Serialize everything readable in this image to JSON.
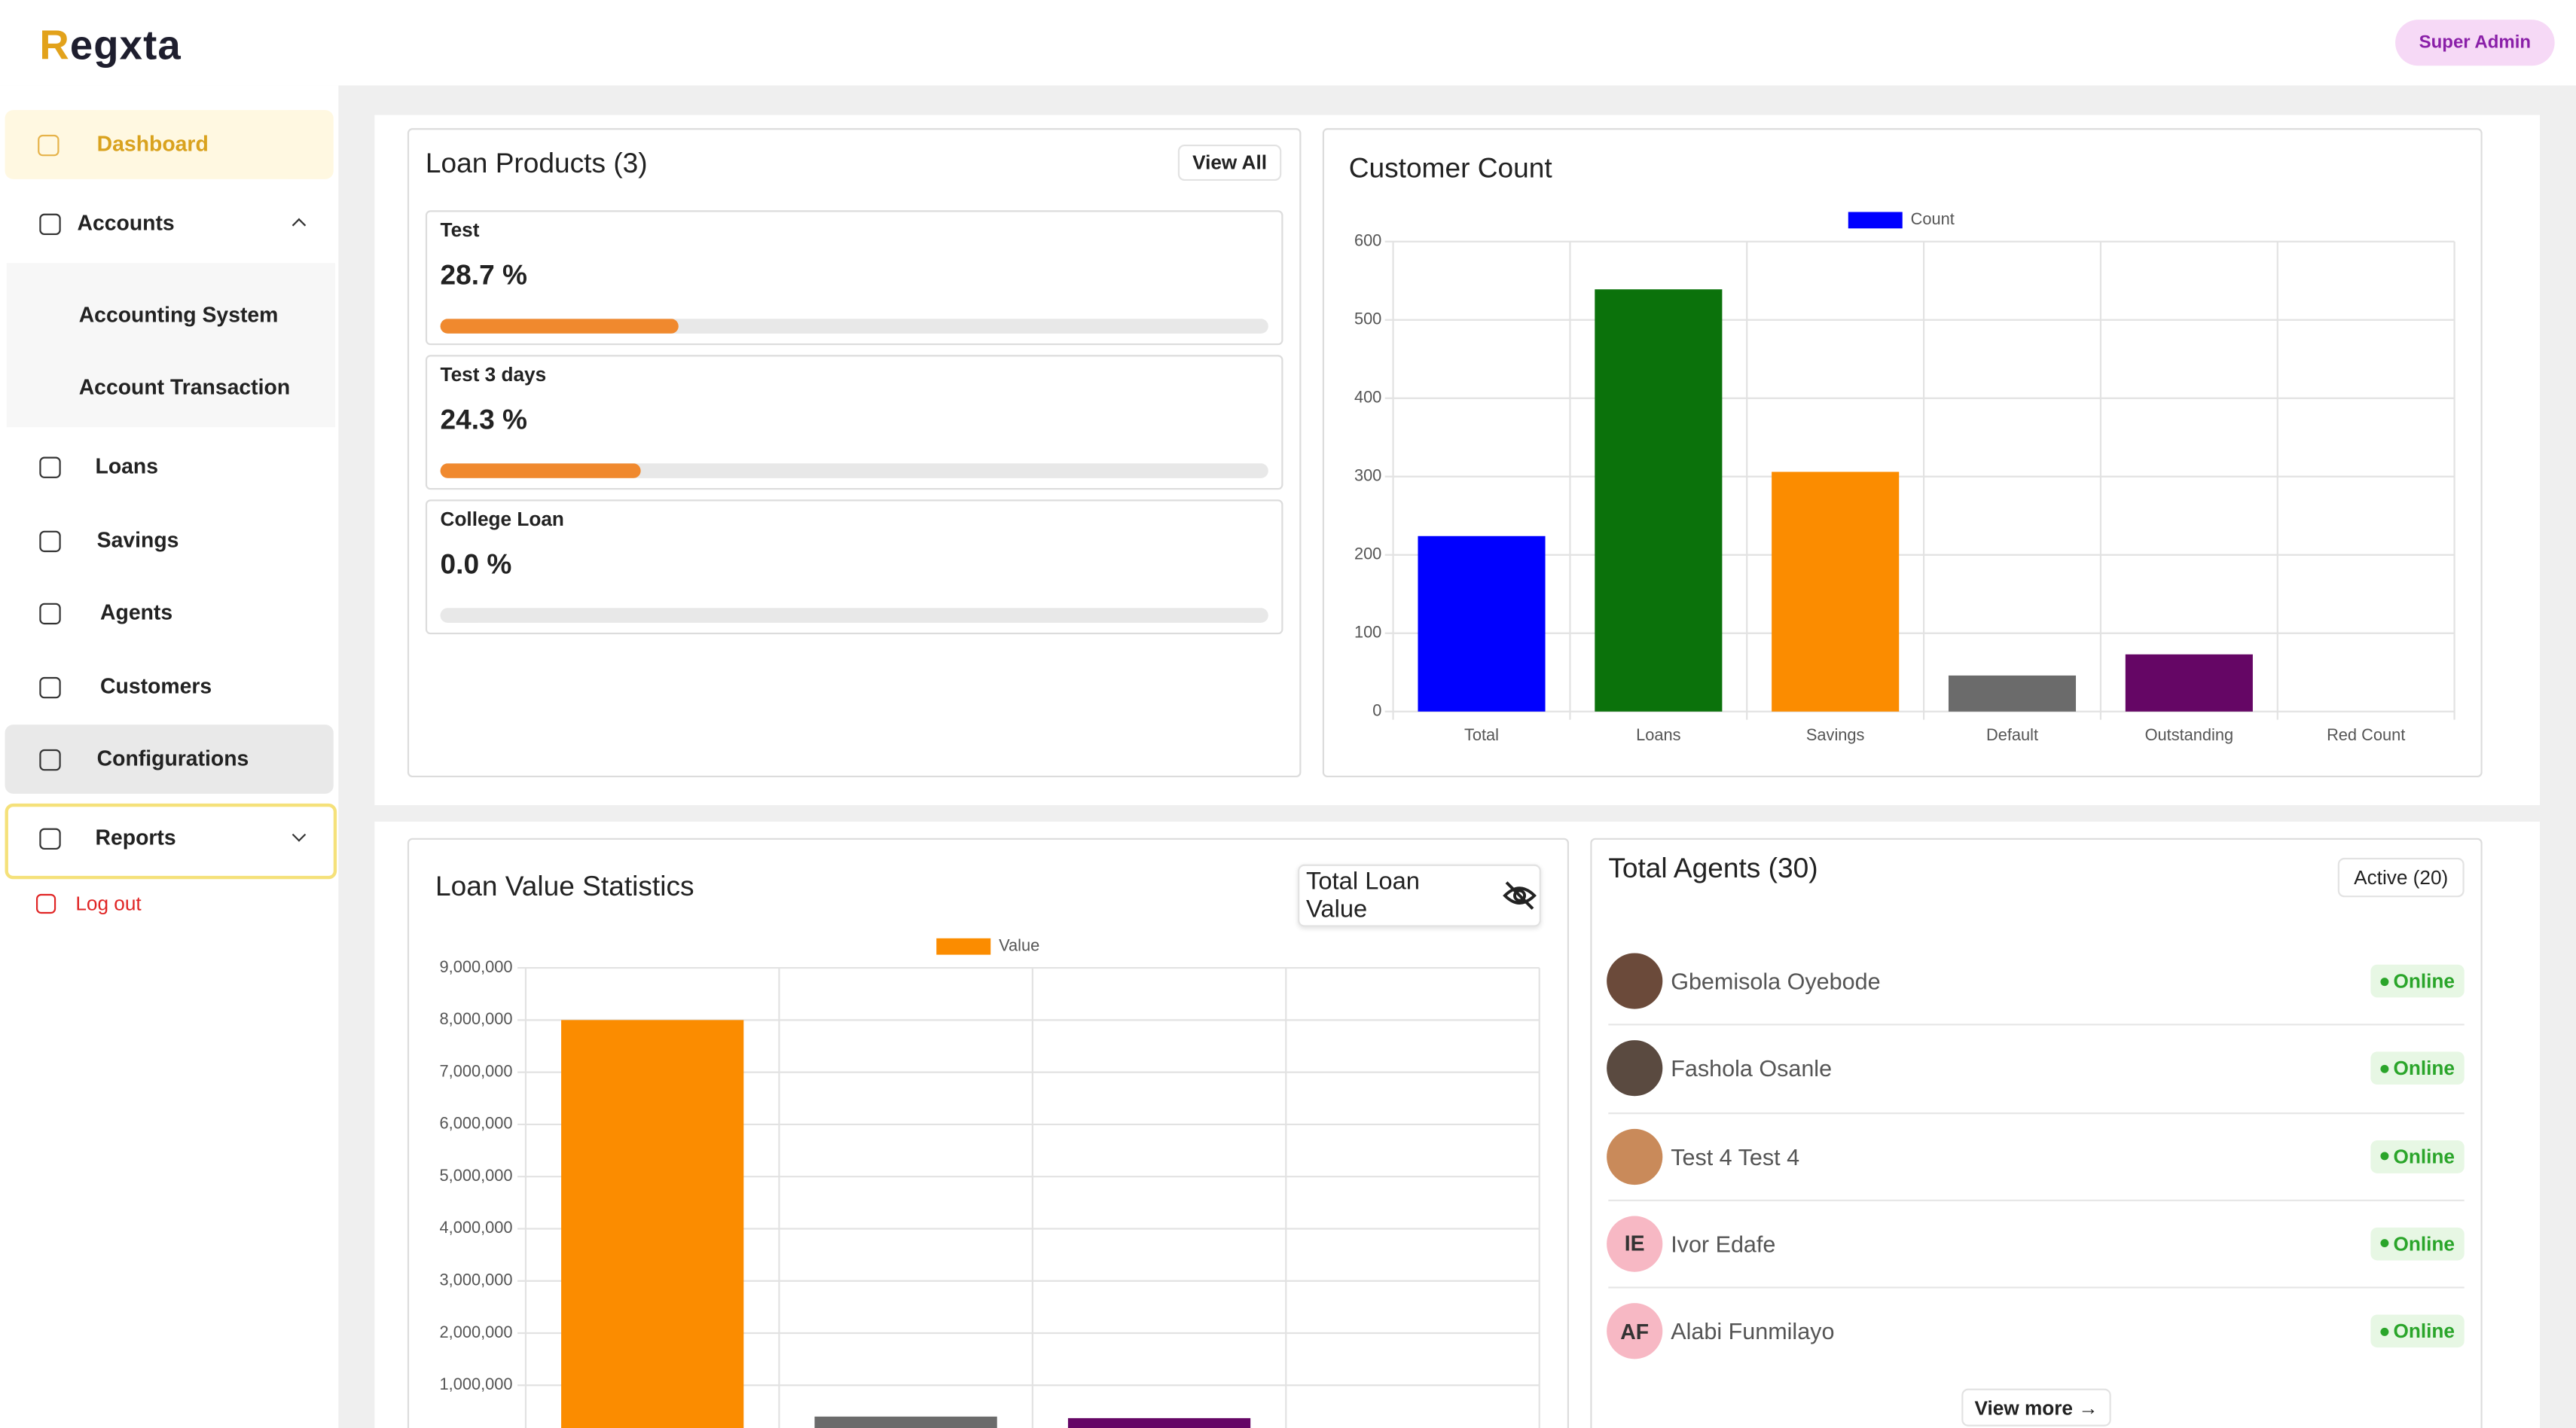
{
  "header": {
    "logo": "Regxta",
    "user_role": "Super Admin"
  },
  "sidebar": {
    "items": [
      "Dashboard",
      "Accounts",
      "Accounting System",
      "Account Transaction",
      "Loans",
      "Savings",
      "Agents",
      "Customers",
      "Configurations",
      "Reports"
    ],
    "logout": "Log out"
  },
  "loan_products": {
    "title": "Loan Products (3)",
    "button": "View All",
    "bar_color": "#f0892e",
    "items": [
      {
        "name": "Test",
        "value": 28.7,
        "label": "28.7 %"
      },
      {
        "name": "Test 3 days",
        "value": 24.3,
        "label": "24.3 %"
      },
      {
        "name": "College Loan",
        "value": 0.0,
        "label": "0.0 %"
      }
    ]
  },
  "customer_count": {
    "type": "bar",
    "title": "Customer Count",
    "categories": [
      "Total",
      "Loans",
      "Savings",
      "Default",
      "Outstanding",
      "Red Count"
    ],
    "series": [
      {
        "name": "Count",
        "color": "#0000ff",
        "values": [
          224,
          539,
          306,
          46,
          73,
          0
        ]
      }
    ],
    "colors": [
      "#0000ff",
      "#0b720b",
      "#fb8c00",
      "#6b6b6b",
      "#650665",
      "#cccccc"
    ],
    "ylim": [
      0,
      600
    ],
    "yticks": [
      0,
      100,
      200,
      300,
      400,
      500,
      600
    ],
    "grid": true
  },
  "loan_value": {
    "type": "bar",
    "title": "Loan Value Statistics",
    "button": "Total Loan Value",
    "categories": [
      null,
      null,
      null,
      null
    ],
    "series": [
      {
        "name": "Value",
        "color": "#fb8c00",
        "values": [
          8000000,
          400000,
          370000,
          0
        ]
      }
    ],
    "colors": [
      "#fb8c00",
      "#6b6b6b",
      "#650665",
      "#cccccc"
    ],
    "ylim": [
      0,
      9000000
    ],
    "yticks": [
      {
        "value": 1000000,
        "label": "1,000,000"
      },
      {
        "value": 2000000,
        "label": "2,000,000"
      },
      {
        "value": 3000000,
        "label": "3,000,000"
      },
      {
        "value": 4000000,
        "label": "4,000,000"
      },
      {
        "value": 5000000,
        "label": "5,000,000"
      },
      {
        "value": 6000000,
        "label": "6,000,000"
      },
      {
        "value": 7000000,
        "label": "7,000,000"
      },
      {
        "value": 8000000,
        "label": "8,000,000"
      },
      {
        "value": 9000000,
        "label": "9,000,000"
      }
    ],
    "grid": true
  },
  "agents": {
    "title": "Total Agents (30)",
    "badge": "Active (20)",
    "button": "View more →",
    "list": [
      {
        "name": "Gbemisola Oyebode",
        "status": "Online"
      },
      {
        "name": "Fashola Osanle",
        "status": "Online"
      },
      {
        "name": "Test 4 Test 4",
        "status": "Online"
      },
      {
        "name": "Ivor Edafe",
        "initials": "IE",
        "status": "Online"
      },
      {
        "name": "Alabi Funmilayo",
        "initials": "AF",
        "status": "Online"
      }
    ]
  }
}
